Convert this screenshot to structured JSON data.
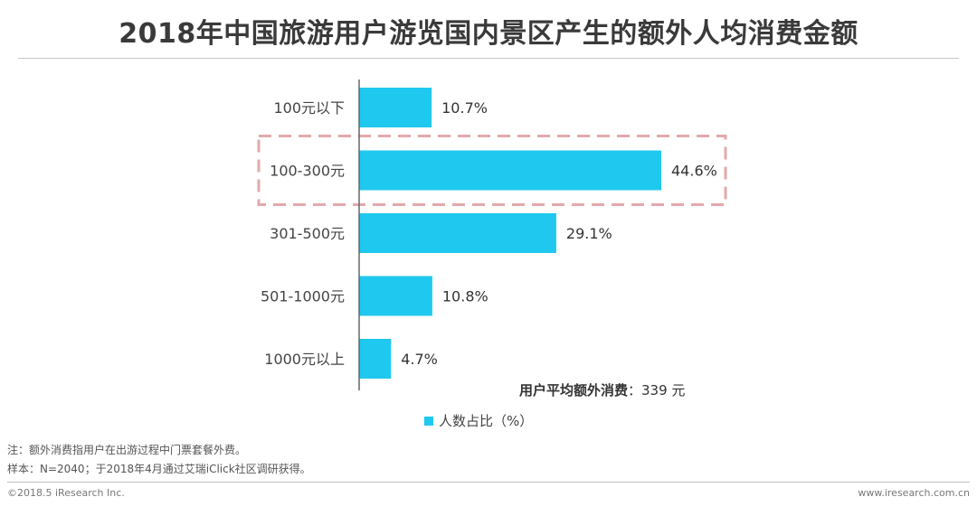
{
  "chart_data": {
    "type": "bar",
    "orientation": "horizontal",
    "title": "2018年中国旅游用户游览国内景区产生的额外人均消费金额",
    "categories": [
      "100元以下",
      "100-300元",
      "301-500元",
      "501-1000元",
      "1000元以上"
    ],
    "values": [
      10.7,
      44.6,
      29.1,
      10.8,
      4.7
    ],
    "value_labels": [
      "10.7%",
      "44.6%",
      "29.1%",
      "10.8%",
      "4.7%"
    ],
    "series": [
      {
        "name": "人数占比（%）",
        "values": [
          10.7,
          44.6,
          29.1,
          10.8,
          4.7
        ]
      }
    ],
    "highlight_category": "100-300元",
    "xlim": [
      0,
      50
    ],
    "grid": false,
    "legend": "bottom-center",
    "annotation": {
      "label": "用户平均额外消费",
      "value": "：339 元"
    }
  },
  "colors": {
    "bar": "#1FC8EE",
    "highlight_box": "#E3A9AC",
    "axis": "#666666"
  },
  "notes": {
    "note": "注：额外消费指用户在出游过程中门票套餐外费。",
    "sample": "样本：N=2040；于2018年4月通过艾瑞iClick社区调研获得。"
  },
  "footer": {
    "left": "©2018.5 iResearch Inc.",
    "right": "www.iresearch.com.cn"
  }
}
